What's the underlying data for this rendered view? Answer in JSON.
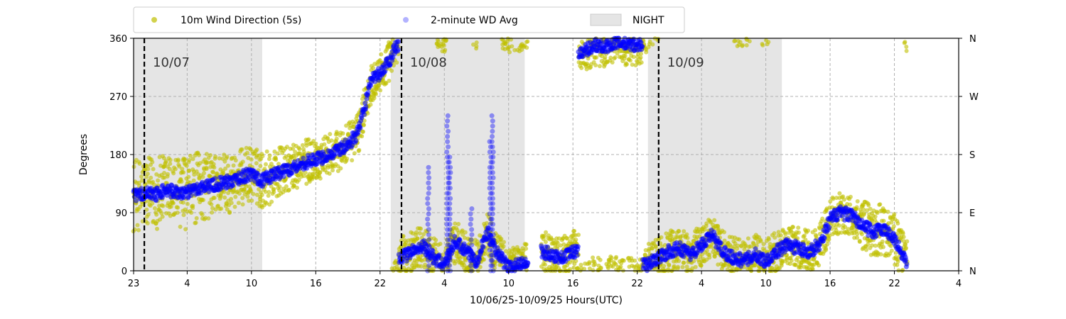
{
  "chart_data": {
    "type": "scatter",
    "xlabel": "10/06/25-10/09/25  Hours(UTC)",
    "ylabel": "Degrees",
    "x_ticks": [
      {
        "h": 0,
        "label": "23"
      },
      {
        "h": 5,
        "label": "4"
      },
      {
        "h": 11,
        "label": "10"
      },
      {
        "h": 17,
        "label": "16"
      },
      {
        "h": 23,
        "label": "22"
      },
      {
        "h": 29,
        "label": "4"
      },
      {
        "h": 35,
        "label": "10"
      },
      {
        "h": 41,
        "label": "16"
      },
      {
        "h": 47,
        "label": "22"
      },
      {
        "h": 53,
        "label": "4"
      },
      {
        "h": 59,
        "label": "10"
      },
      {
        "h": 65,
        "label": "16"
      },
      {
        "h": 71,
        "label": "22"
      },
      {
        "h": 77,
        "label": "4"
      }
    ],
    "xlim": [
      0,
      77
    ],
    "ylim": [
      0,
      360
    ],
    "y_ticks": [
      0,
      90,
      180,
      270,
      360
    ],
    "y_ticks_right": [
      "N",
      "E",
      "S",
      "W",
      "N"
    ],
    "grid": true,
    "legend": {
      "placement": "top-left",
      "entries": [
        {
          "label": "10m Wind Direction (5s)",
          "color": "#bfbf00",
          "marker": "point"
        },
        {
          "label": "2-minute WD Avg",
          "color": "#0000ff",
          "marker": "point-faint"
        },
        {
          "label": "NIGHT",
          "color": "#e5e5e5",
          "marker": "patch"
        }
      ]
    },
    "night_periods": [
      [
        0,
        12
      ],
      [
        24,
        36.5
      ],
      [
        48,
        60.5
      ]
    ],
    "day_markers": [
      {
        "h": 1,
        "label": "10/07"
      },
      {
        "h": 25,
        "label": "10/08"
      },
      {
        "h": 49,
        "label": "10/09"
      }
    ],
    "colors": {
      "raw": "#bfbf00",
      "avg": "#0000ff",
      "night": "#e5e5e5",
      "grid": "#b0b0b0"
    },
    "avg_series": {
      "name": "2-minute WD Avg",
      "x": [
        0,
        1,
        2,
        3,
        4,
        5,
        6,
        7,
        8,
        9,
        10,
        11,
        12,
        13,
        14,
        15,
        16,
        17,
        18,
        19,
        20,
        21,
        21.5,
        22,
        22.5,
        23,
        23.5,
        24,
        24.5,
        25,
        26,
        27,
        28,
        29,
        30,
        31,
        32,
        33,
        34,
        35,
        36,
        38,
        39,
        40,
        41,
        42,
        43,
        44,
        45,
        46,
        47,
        48,
        49,
        50,
        51,
        52,
        53,
        54,
        55,
        56,
        57,
        58,
        59,
        60,
        61,
        62,
        63,
        64,
        65,
        66,
        67,
        68,
        69,
        70,
        71,
        72
      ],
      "y": [
        115,
        120,
        118,
        125,
        122,
        120,
        128,
        132,
        135,
        138,
        145,
        150,
        140,
        148,
        155,
        160,
        168,
        172,
        178,
        185,
        195,
        215,
        250,
        285,
        300,
        305,
        315,
        330,
        350,
        20,
        30,
        40,
        20,
        10,
        45,
        30,
        15,
        60,
        25,
        5,
        10,
        30,
        25,
        20,
        30,
        340,
        350,
        345,
        355,
        350,
        350,
        10,
        20,
        30,
        35,
        25,
        40,
        55,
        30,
        20,
        15,
        25,
        15,
        30,
        40,
        35,
        30,
        40,
        80,
        90,
        85,
        70,
        60,
        65,
        50,
        15
      ]
    },
    "raw_series": {
      "name": "10m Wind Direction (5s)",
      "spread": [
        70,
        70,
        70,
        70,
        70,
        70,
        65,
        60,
        60,
        55,
        55,
        55,
        55,
        50,
        45,
        45,
        45,
        40,
        40,
        40,
        40,
        40,
        40,
        40,
        40,
        40,
        40,
        40,
        40,
        40,
        40,
        40,
        40,
        40,
        40,
        40,
        40,
        40,
        40,
        40,
        40,
        40,
        40,
        40,
        40,
        40,
        40,
        40,
        40,
        40,
        40,
        40,
        40,
        40,
        40,
        40,
        40,
        40,
        40,
        40,
        40,
        40,
        40,
        40,
        40,
        40,
        40,
        40,
        50,
        50,
        50,
        50,
        50,
        50,
        50,
        40
      ]
    }
  }
}
